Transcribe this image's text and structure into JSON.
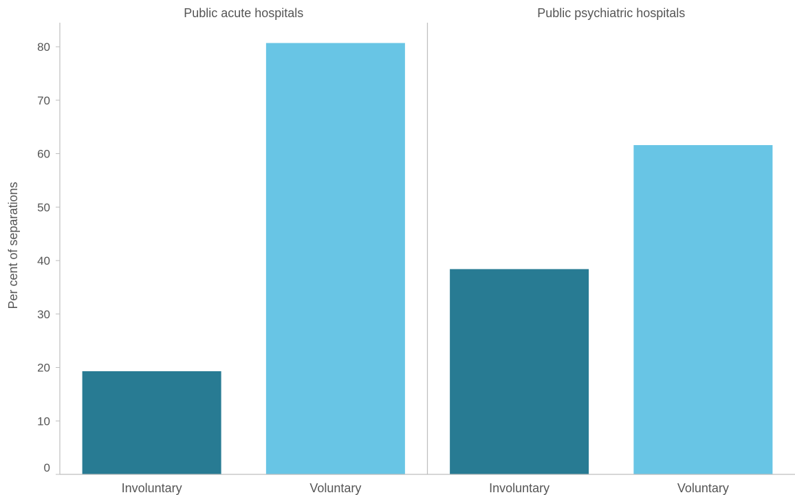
{
  "chart_data": {
    "type": "bar",
    "ylabel": "Per cent of separations",
    "ylim": [
      0,
      85
    ],
    "yticks": [
      0,
      10,
      20,
      30,
      40,
      50,
      60,
      70,
      80
    ],
    "grid": false,
    "colors": {
      "Involuntary": "#287B93",
      "Voluntary": "#68C5E5"
    },
    "panels": [
      {
        "title": "Public acute hospitals",
        "categories": [
          "Involuntary",
          "Voluntary"
        ],
        "values": [
          19.3,
          80.7
        ]
      },
      {
        "title": "Public psychiatric hospitals",
        "categories": [
          "Involuntary",
          "Voluntary"
        ],
        "values": [
          38.4,
          61.6
        ]
      }
    ]
  }
}
